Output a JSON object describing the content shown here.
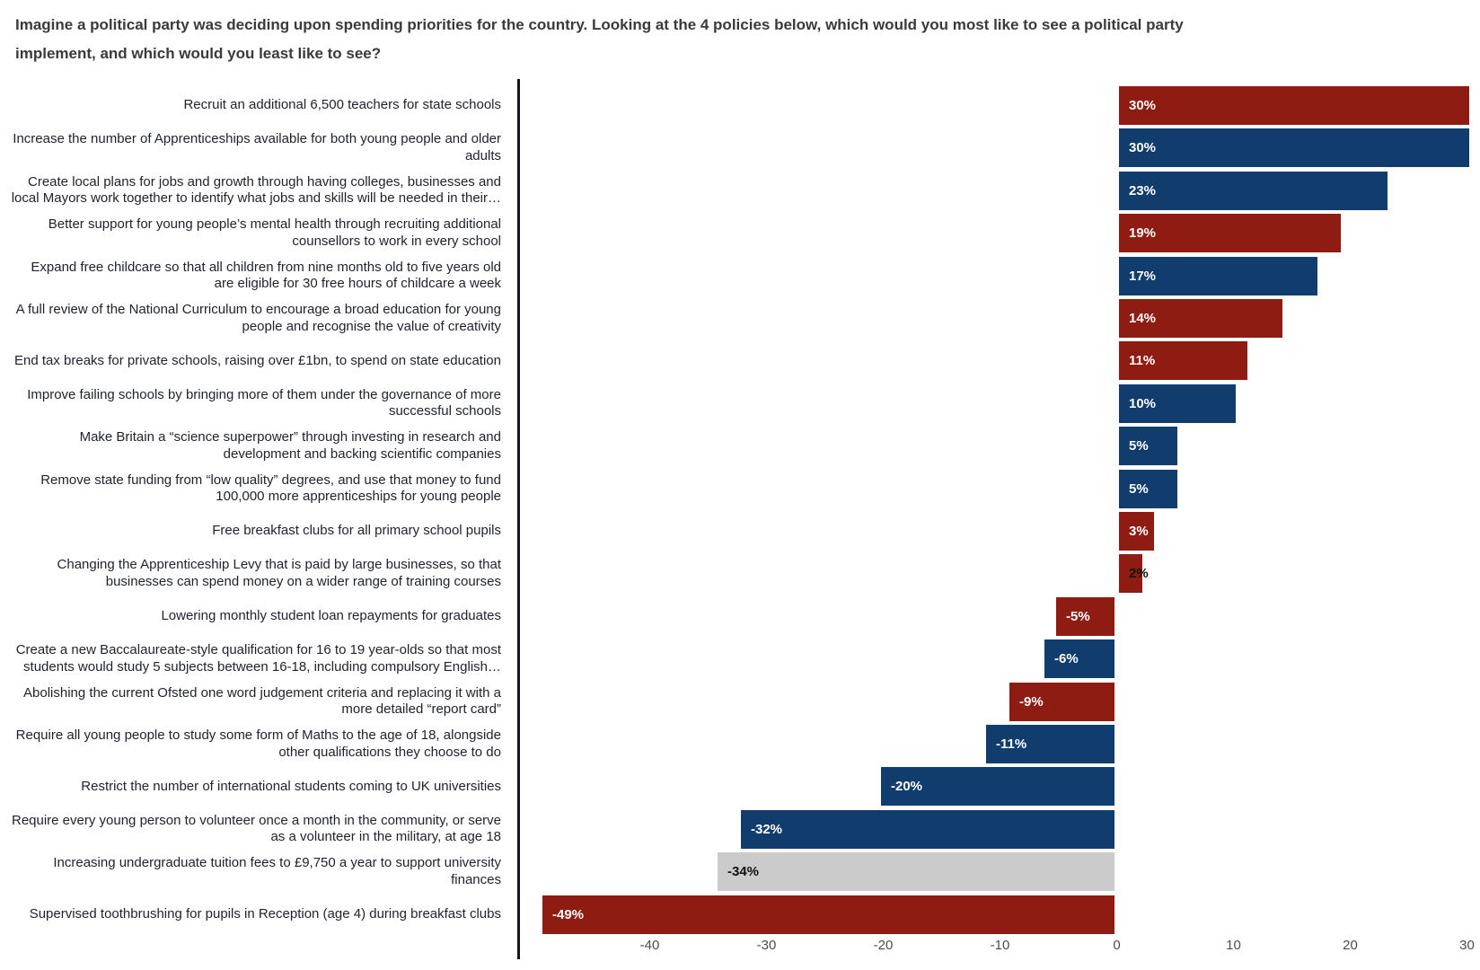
{
  "title": {
    "line1": "Imagine a political party was deciding upon spending priorities for the country. Looking at the 4 policies below, which would you most like to see a political party",
    "line2": "implement, and which would you least like to see?"
  },
  "colors": {
    "red": "#8e1c12",
    "blue": "#103d6e",
    "gray": "#cbcbcb",
    "axis": "#14141e",
    "value_label_light": "#ffffff",
    "value_label_dark": "#111111"
  },
  "chart_data": {
    "type": "bar",
    "orientation": "horizontal",
    "unit": "%",
    "xlim": [
      -50,
      31
    ],
    "x_ticks": [
      -40,
      -30,
      -20,
      -10,
      0,
      10,
      20,
      30
    ],
    "grid": false,
    "legend": false,
    "categories": [
      "Recruit an additional 6,500 teachers for state schools",
      "Increase the number of Apprenticeships available for both young people and older\nadults",
      "Create local plans for jobs and growth through having colleges, businesses and\nlocal Mayors work together to identify what jobs and skills will be needed in their…",
      "Better support for young people’s mental health through recruiting additional\ncounsellors to work in every school",
      "Expand free childcare so that all children from nine months old to five years old\nare eligible for 30 free hours of childcare a week",
      "A full review of the National Curriculum to encourage a broad education for young\npeople and recognise the value of creativity",
      "End tax breaks for private schools, raising over £1bn, to spend on state education",
      "Improve failing schools by bringing more of them under the governance of more\nsuccessful schools",
      "Make Britain a “science superpower” through investing in research and\ndevelopment and backing scientific companies",
      "Remove state funding from “low quality” degrees, and use that money to fund\n100,000 more apprenticeships for young people",
      "Free breakfast clubs for all primary school pupils",
      "Changing the Apprenticeship Levy that is paid by large businesses, so that\nbusinesses can spend money on a wider range of training courses",
      "Lowering monthly student loan repayments for graduates",
      "Create a new Baccalaureate-style qualification for 16 to 19 year-olds so that most\nstudents would study 5 subjects between 16-18, including compulsory English…",
      "Abolishing the current Ofsted one word judgement criteria and replacing it with a\nmore detailed “report card”",
      "Require all young people to study some form of Maths to the age of 18, alongside\nother qualifications they choose to do",
      "Restrict the number of international students coming to UK universities",
      "Require every young person to volunteer once a month in the community, or serve\nas a volunteer in the military, at age 18",
      "Increasing undergraduate tuition fees to £9,750 a year to support university\nfinances",
      "Supervised toothbrushing for pupils in Reception (age 4) during breakfast clubs"
    ],
    "values": [
      30,
      30,
      23,
      19,
      17,
      14,
      11,
      10,
      5,
      5,
      3,
      2,
      -5,
      -6,
      -9,
      -11,
      -20,
      -32,
      -34,
      -49
    ],
    "value_labels": [
      "30%",
      "30%",
      "23%",
      "19%",
      "17%",
      "14%",
      "11%",
      "10%",
      "5%",
      "5%",
      "3%",
      "2%",
      "-5%",
      "-6%",
      "-9%",
      "-11%",
      "-20%",
      "-32%",
      "-34%",
      "-49%"
    ],
    "bar_colors": [
      "red",
      "blue",
      "blue",
      "red",
      "blue",
      "red",
      "red",
      "blue",
      "blue",
      "blue",
      "red",
      "red",
      "red",
      "blue",
      "red",
      "blue",
      "blue",
      "blue",
      "gray",
      "red"
    ],
    "value_label_styles": [
      "light",
      "light",
      "light",
      "light",
      "light",
      "light",
      "light",
      "light",
      "light",
      "light",
      "light",
      "dark",
      "light",
      "light",
      "light",
      "light",
      "light",
      "light",
      "dark",
      "light"
    ]
  }
}
